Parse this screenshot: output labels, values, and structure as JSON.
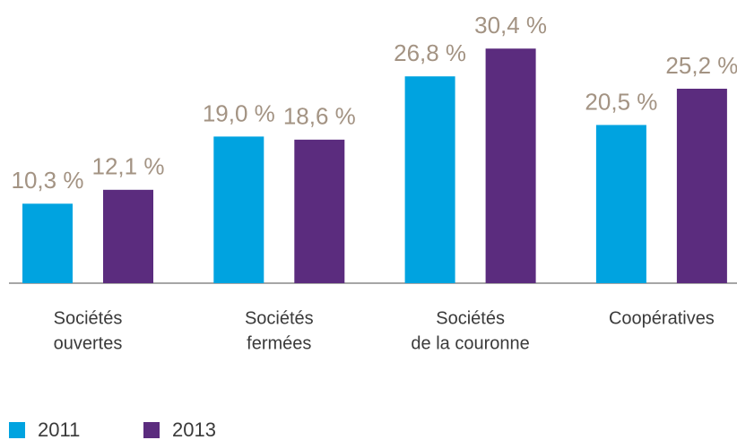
{
  "chart_data": {
    "type": "bar",
    "categories": [
      [
        "Sociétés",
        "ouvertes"
      ],
      [
        "Sociétés",
        "fermées"
      ],
      [
        "Sociétés",
        "de la couronne"
      ],
      [
        "Coopératives"
      ]
    ],
    "series": [
      {
        "name": "2011",
        "color": "#00a3e0",
        "values": [
          10.3,
          19.0,
          26.8,
          20.5
        ],
        "value_labels": [
          "10,3 %",
          "19,0 %",
          "26,8 %",
          "20,5 %"
        ]
      },
      {
        "name": "2013",
        "color": "#5b2c7e",
        "values": [
          12.1,
          18.6,
          30.4,
          25.2
        ],
        "value_labels": [
          "12,1 %",
          "18,6 %",
          "30,4 %",
          "25,2 %"
        ]
      }
    ],
    "ylim": [
      0,
      36
    ],
    "legend": "bottom-left"
  }
}
